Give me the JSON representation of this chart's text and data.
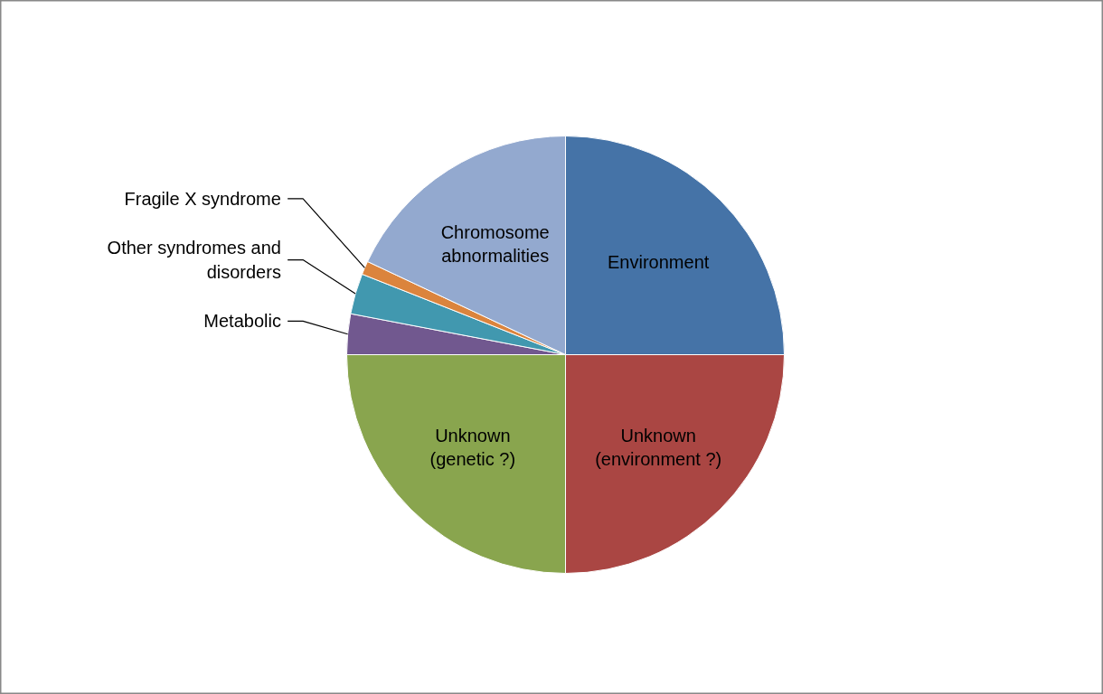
{
  "chart_data": {
    "type": "pie",
    "categories": [
      "Environment",
      "Unknown (environment ?)",
      "Unknown (genetic ?)",
      "Metabolic",
      "Other syndromes and disorders",
      "Fragile X syndrome",
      "Chromosome abnormalities"
    ],
    "values": [
      25,
      25,
      25,
      3,
      3,
      1,
      18
    ],
    "colors": [
      "#4573a7",
      "#aa4643",
      "#89a54e",
      "#71588f",
      "#4198af",
      "#db843d",
      "#93a9cf"
    ],
    "legend": false
  }
}
